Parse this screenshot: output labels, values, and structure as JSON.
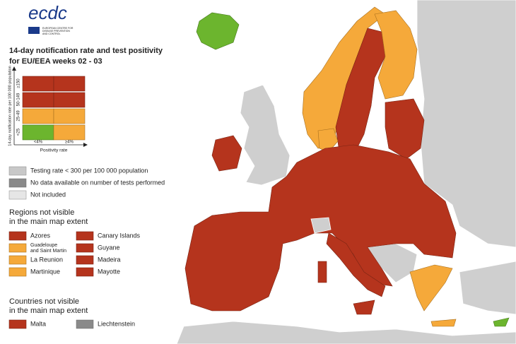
{
  "header": {
    "logo": "ecdc",
    "logo_subtitle": [
      "EUROPEAN CENTRE FOR",
      "DISEASE PREVENTION",
      "AND CONTROL"
    ]
  },
  "title": [
    "14-day notification rate and test positivity",
    "for EU/EEA weeks 02 - 03"
  ],
  "matrix": {
    "y_axis_label": "14-day notification rate per 100 000 population",
    "row_labels": [
      "≥150",
      "50-149",
      "25-49",
      "<25"
    ],
    "column_labels": [
      "<4%",
      "≥4%"
    ],
    "x_axis_label": "Positivity rate"
  },
  "legend": [
    "Testing rate < 300 per 100 000 population",
    "No data available on number of tests performed",
    "Not included"
  ],
  "regions": {
    "heading": [
      "Regions not visible",
      "in the main map extent"
    ],
    "items": [
      {
        "name": [
          "Azores"
        ]
      },
      {
        "name": [
          "Guadeloupe",
          "and Saint Martin"
        ]
      },
      {
        "name": [
          "La Reunion"
        ]
      },
      {
        "name": [
          "Martinique"
        ]
      },
      {
        "name": [
          "Canary Islands"
        ]
      },
      {
        "name": [
          "Guyane"
        ]
      },
      {
        "name": [
          "Madeira"
        ]
      },
      {
        "name": [
          "Mayotte"
        ]
      }
    ]
  },
  "countries": {
    "heading": [
      "Countries not visible",
      "in the main map extent"
    ],
    "items": [
      "Malta",
      "Liechtenstein"
    ]
  }
}
